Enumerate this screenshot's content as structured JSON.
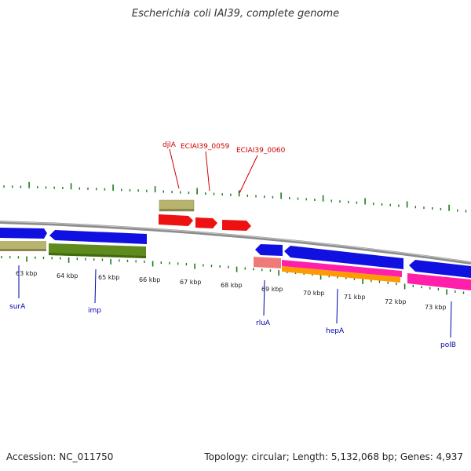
{
  "title": "Escherichia coli IAI39, complete genome",
  "footer": {
    "accession": "Accession: NC_011750",
    "summary": "Topology: circular; Length: 5,132,068 bp; Genes: 4,937"
  },
  "colors": {
    "backbone": "#8c8c8c",
    "tick": "#1a7a1a",
    "blue": "#1010e0",
    "red": "#ee1111",
    "khaki": "#b8b46e",
    "olive": "#5f8a1e",
    "pink": "#ff1faa",
    "orange": "#ff9a00",
    "salmon": "#f07a7a",
    "gene_label_bottom": "#0000aa",
    "gene_label_top": "#cc0000"
  },
  "scale_labels": [
    "63 kbp",
    "64 kbp",
    "65 kbp",
    "66 kbp",
    "67 kbp",
    "68 kbp",
    "69 kbp",
    "70 kbp",
    "71 kbp",
    "72 kbp",
    "73 kbp"
  ],
  "gene_labels_top": [
    "djlA",
    "ECIAI39_0059",
    "ECIAI39_0060"
  ],
  "gene_labels_bottom": [
    "surA",
    "imp",
    "rluA",
    "hepA",
    "polB"
  ]
}
